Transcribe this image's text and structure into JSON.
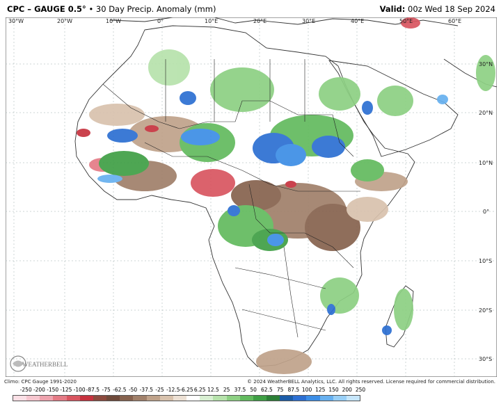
{
  "header": {
    "title_bold": "CPC – GAUGE 0.5°",
    "title_rest": " • 30 Day Precip. Anomaly (mm)",
    "valid_label": "Valid:",
    "valid_value": " 00z Wed 18 Sep 2024"
  },
  "map": {
    "lon_labels": [
      "30°W",
      "20°W",
      "10°W",
      "0°",
      "10°E",
      "20°E",
      "30°E",
      "40°E",
      "50°E",
      "60°E"
    ],
    "lat_labels": [
      "30°N",
      "20°N",
      "10°N",
      "0°",
      "10°S",
      "20°S",
      "30°S"
    ],
    "logo_text": "WEATHERBELL"
  },
  "footer": {
    "climo": "Climo: CPC Gauge 1991-2020",
    "copyright": "© 2024 WeatherBELL Analytics, LLC. All rights reserved. License required for commercial distribution."
  },
  "legend": {
    "ticks": [
      "-250",
      "-200",
      "-150",
      "-125",
      "-100",
      "-87.5",
      "-75",
      "-62.5",
      "-50",
      "-37.5",
      "-25",
      "-12.5",
      "-6.25",
      "6.25",
      "12.5",
      "25",
      "37.5",
      "50",
      "62.5",
      "75",
      "87.5",
      "100",
      "125",
      "150",
      "200",
      "250"
    ],
    "colors": [
      "#fbe0e6",
      "#f6c6cf",
      "#eea3ae",
      "#e47b86",
      "#d85560",
      "#c6323e",
      "#8c4a3e",
      "#6f4a3a",
      "#86624e",
      "#a0806a",
      "#bfa28a",
      "#d8c2ad",
      "#ece0d4",
      "#ffffff",
      "#d8efd2",
      "#b6e2ab",
      "#8dd083",
      "#62ba5e",
      "#3f9f45",
      "#2c7f37",
      "#1b5ca8",
      "#2c6fd2",
      "#3c8ee6",
      "#67b0ef",
      "#98cff6",
      "#c6e6fb"
    ]
  }
}
